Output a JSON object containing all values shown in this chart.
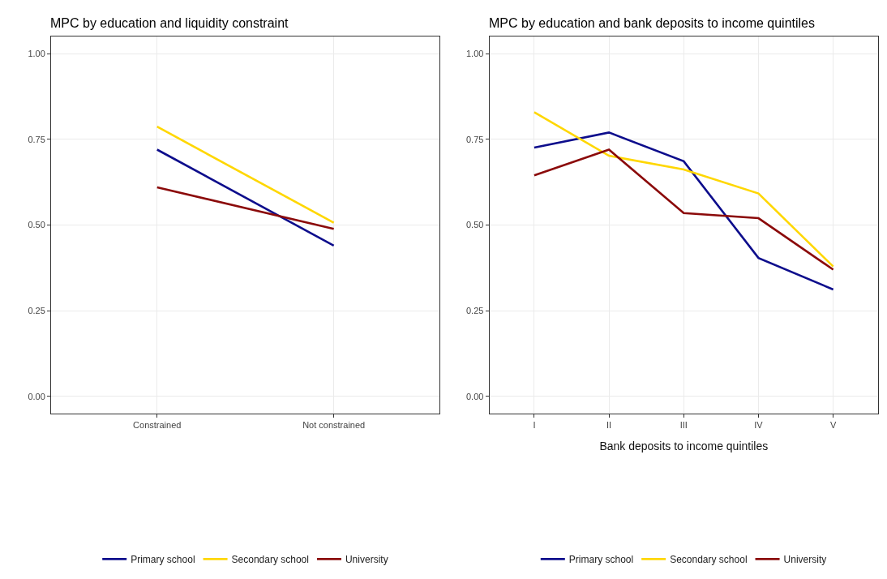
{
  "chart_data": [
    {
      "type": "line",
      "title": "MPC by education and liquidity constraint",
      "categories": [
        "Constrained",
        "Not constrained"
      ],
      "series": [
        {
          "name": "Primary school",
          "color": "#0d0d8c",
          "values": [
            0.72,
            0.44
          ]
        },
        {
          "name": "Secondary school",
          "color": "#ffd700",
          "values": [
            0.787,
            0.507
          ]
        },
        {
          "name": "University",
          "color": "#8b0a0a",
          "values": [
            0.61,
            0.489
          ]
        }
      ],
      "ylim": [
        -0.05,
        1.05
      ],
      "yticks": [
        {
          "value": 0,
          "label": "0.00"
        },
        {
          "value": 0.25,
          "label": "0.25"
        },
        {
          "value": 0.5,
          "label": "0.50"
        },
        {
          "value": 0.75,
          "label": "0.75"
        },
        {
          "value": 1,
          "label": "1.00"
        }
      ],
      "grid": true,
      "legend": "bottom",
      "marker": "none",
      "line_style": "solid"
    },
    {
      "type": "line",
      "title": "MPC by education and bank deposits to income quintiles",
      "xlabel": "Bank deposits to income quintiles",
      "categories": [
        "I",
        "II",
        "III",
        "IV",
        "V"
      ],
      "series": [
        {
          "name": "Primary school",
          "color": "#0d0d8c",
          "values": [
            0.726,
            0.77,
            0.686,
            0.404,
            0.312
          ]
        },
        {
          "name": "Secondary school",
          "color": "#ffd700",
          "values": [
            0.829,
            0.702,
            0.662,
            0.592,
            0.379
          ]
        },
        {
          "name": "University",
          "color": "#8b0a0a",
          "values": [
            0.645,
            0.72,
            0.535,
            0.52,
            0.37
          ]
        }
      ],
      "ylim": [
        -0.05,
        1.05
      ],
      "yticks": [
        {
          "value": 0,
          "label": "0.00"
        },
        {
          "value": 0.25,
          "label": "0.25"
        },
        {
          "value": 0.5,
          "label": "0.50"
        },
        {
          "value": 0.75,
          "label": "0.75"
        },
        {
          "value": 1,
          "label": "1.00"
        }
      ],
      "grid": true,
      "legend": "bottom",
      "marker": "none",
      "line_style": "solid"
    }
  ]
}
